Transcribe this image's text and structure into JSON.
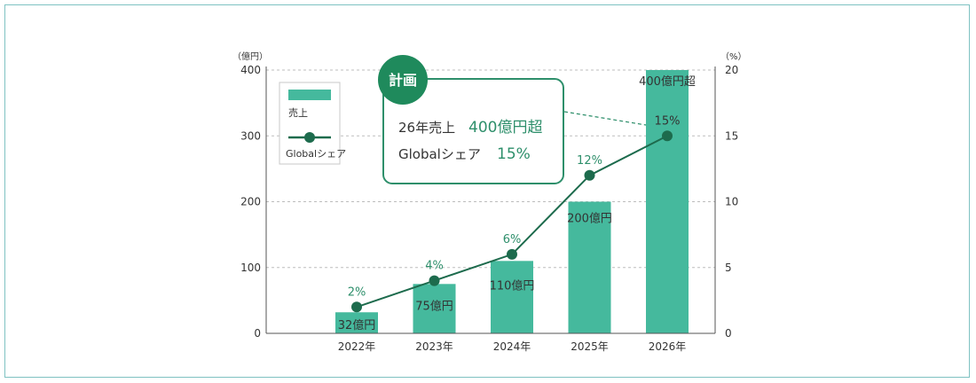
{
  "colors": {
    "bar": "#45b99d",
    "line": "#1d6b4d",
    "accent": "#2e8f6b",
    "grid": "#bdbdbd",
    "badge": "#1f8a5c"
  },
  "chart_data": {
    "type": "bar",
    "categories": [
      "2022年",
      "2023年",
      "2024年",
      "2025年",
      "2026年"
    ],
    "series": [
      {
        "name": "売上",
        "type": "bar",
        "axis": "left",
        "values": [
          32,
          75,
          110,
          200,
          400
        ],
        "labels": [
          "32億円",
          "75億円",
          "110億円",
          "200億円",
          "400億円超"
        ]
      },
      {
        "name": "Globalシェア",
        "type": "line",
        "axis": "right",
        "values": [
          2,
          4,
          6,
          12,
          15
        ],
        "labels": [
          "2%",
          "4%",
          "6%",
          "12%",
          "15%"
        ]
      }
    ],
    "y_left": {
      "unit": "（億円）",
      "ylim": [
        0,
        400
      ],
      "ticks": [
        "0",
        "100",
        "200",
        "300",
        "400"
      ]
    },
    "y_right": {
      "unit": "（%）",
      "ylim": [
        0,
        20
      ],
      "ticks": [
        "0",
        "5",
        "10",
        "15",
        "20"
      ]
    },
    "grid": true,
    "legend": {
      "placement": "top-left",
      "entries": [
        "売上",
        "Globalシェア"
      ]
    },
    "callout": {
      "badge": "計画",
      "line1_label": "26年売上",
      "line1_value": "400億円超",
      "line2_label": "Globalシェア",
      "line2_value": "15%"
    }
  }
}
